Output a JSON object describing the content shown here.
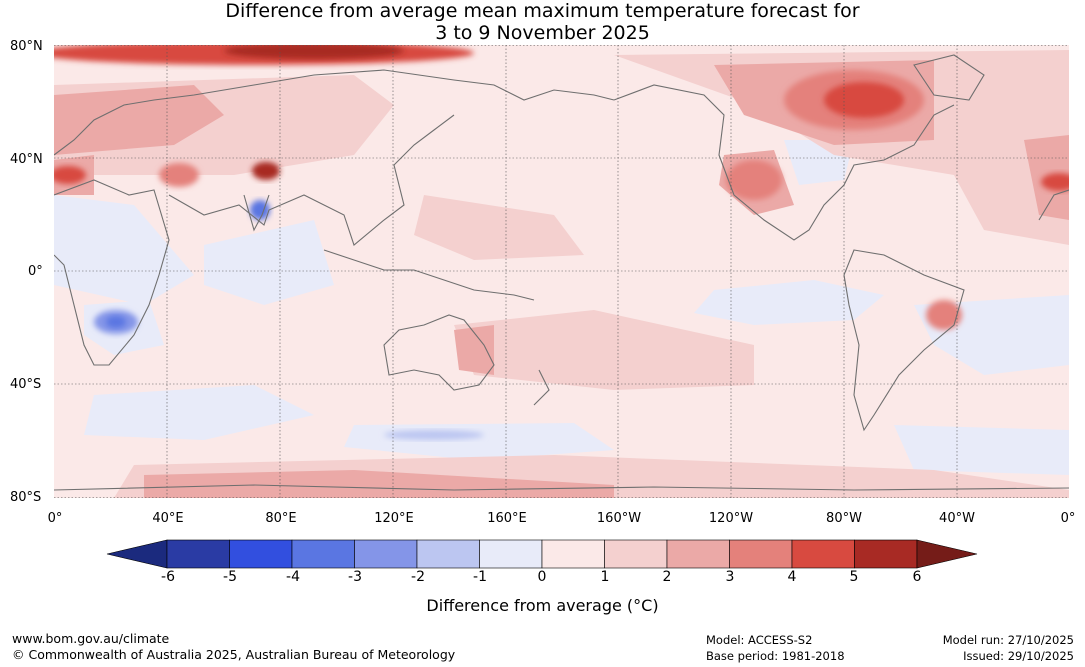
{
  "title": {
    "line1": "Difference from average mean maximum temperature forecast for",
    "line2": "3 to 9 November 2025"
  },
  "map": {
    "lat_labels": [
      "80°N",
      "40°N",
      "0°",
      "40°S",
      "80°S"
    ],
    "lon_labels": [
      "0°",
      "40°E",
      "80°E",
      "120°E",
      "160°E",
      "160°W",
      "120°W",
      "80°W",
      "40°W",
      "0°"
    ],
    "background_value": "0 to 1",
    "notable_anomalies": [
      {
        "region": "Northern Canada",
        "value": "4 to 6"
      },
      {
        "region": "Western USA",
        "value": "3 to 5"
      },
      {
        "region": "Northern Siberia / Arctic coast",
        "value": "4 to 6"
      },
      {
        "region": "Tibet",
        "value": "5 to 6"
      },
      {
        "region": "Southern Africa",
        "value": "-3 to -1"
      },
      {
        "region": "Southern India",
        "value": "-3 to -1"
      },
      {
        "region": "Antarctica",
        "value": "1 to 3"
      }
    ]
  },
  "colorbar": {
    "ticks": [
      "-6",
      "-5",
      "-4",
      "-3",
      "-2",
      "-1",
      "0",
      "1",
      "2",
      "3",
      "4",
      "5",
      "6"
    ],
    "colors": [
      "#2a3ba4",
      "#324fdf",
      "#5a76e2",
      "#8495e8",
      "#bcc6f1",
      "#e8ebf9",
      "#fbe9e8",
      "#f4d0cf",
      "#eba9a7",
      "#e4817b",
      "#d84a40",
      "#a82a24"
    ],
    "low_extend_color": "#1b2a7e",
    "high_extend_color": "#751c18",
    "label": "Difference from average (°C)"
  },
  "footer": {
    "url": "www.bom.gov.au/climate",
    "copyright": "© Commonwealth of Australia 2025, Australian Bureau of Meteorology",
    "model": "Model: ACCESS-S2",
    "base_period": "Base period: 1981-2018",
    "model_run": "Model run: 27/10/2025",
    "issued": "Issued: 29/10/2025"
  }
}
